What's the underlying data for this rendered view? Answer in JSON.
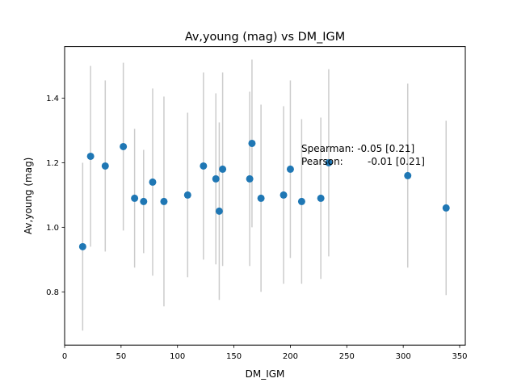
{
  "chart_data": {
    "type": "scatter",
    "title": "Av,young (mag) vs DM_IGM",
    "xlabel": "DM_IGM",
    "ylabel": "Av,young (mag)",
    "xlim": [
      0,
      355
    ],
    "ylim": [
      0.635,
      1.56
    ],
    "xticks": [
      0,
      50,
      100,
      150,
      200,
      250,
      300,
      350
    ],
    "yticks": [
      0.8,
      1.0,
      1.2,
      1.4
    ],
    "xtick_labels": [
      "0",
      "50",
      "100",
      "150",
      "200",
      "250",
      "300",
      "350"
    ],
    "ytick_labels": [
      "0.8",
      "1.0",
      "1.2",
      "1.4"
    ],
    "grid": false,
    "point_color": "#1f77b4",
    "errorbar_color": "#cccccc",
    "annotation": {
      "line1": "Spearman: -0.05 [0.21]",
      "line2_label": "Pearson:",
      "line2_value": "-0.01 [0.21]"
    },
    "points": [
      {
        "x": 16,
        "y": 0.94,
        "lo": 0.68,
        "hi": 1.2
      },
      {
        "x": 23,
        "y": 1.22,
        "lo": 0.94,
        "hi": 1.5
      },
      {
        "x": 36,
        "y": 1.19,
        "lo": 0.925,
        "hi": 1.455
      },
      {
        "x": 52,
        "y": 1.25,
        "lo": 0.99,
        "hi": 1.51
      },
      {
        "x": 62,
        "y": 1.09,
        "lo": 0.875,
        "hi": 1.305
      },
      {
        "x": 70,
        "y": 1.08,
        "lo": 0.92,
        "hi": 1.24
      },
      {
        "x": 78,
        "y": 1.14,
        "lo": 0.85,
        "hi": 1.43
      },
      {
        "x": 88,
        "y": 1.08,
        "lo": 0.755,
        "hi": 1.405
      },
      {
        "x": 109,
        "y": 1.1,
        "lo": 0.845,
        "hi": 1.355
      },
      {
        "x": 123,
        "y": 1.19,
        "lo": 0.9,
        "hi": 1.48
      },
      {
        "x": 134,
        "y": 1.15,
        "lo": 0.885,
        "hi": 1.415
      },
      {
        "x": 137,
        "y": 1.05,
        "lo": 0.775,
        "hi": 1.325
      },
      {
        "x": 140,
        "y": 1.18,
        "lo": 0.88,
        "hi": 1.48
      },
      {
        "x": 164,
        "y": 1.15,
        "lo": 0.88,
        "hi": 1.42
      },
      {
        "x": 166,
        "y": 1.26,
        "lo": 1.0,
        "hi": 1.52
      },
      {
        "x": 174,
        "y": 1.09,
        "lo": 0.8,
        "hi": 1.38
      },
      {
        "x": 194,
        "y": 1.1,
        "lo": 0.825,
        "hi": 1.375
      },
      {
        "x": 200,
        "y": 1.18,
        "lo": 0.905,
        "hi": 1.455
      },
      {
        "x": 210,
        "y": 1.08,
        "lo": 0.825,
        "hi": 1.335
      },
      {
        "x": 227,
        "y": 1.09,
        "lo": 0.84,
        "hi": 1.34
      },
      {
        "x": 234,
        "y": 1.2,
        "lo": 0.91,
        "hi": 1.49
      },
      {
        "x": 304,
        "y": 1.16,
        "lo": 0.875,
        "hi": 1.445
      },
      {
        "x": 338,
        "y": 1.06,
        "lo": 0.79,
        "hi": 1.33
      }
    ]
  }
}
